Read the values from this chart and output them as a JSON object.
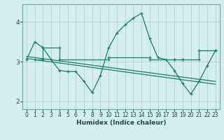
{
  "bg_color": "#d4eeed",
  "grid_color": "#b8d8d4",
  "line_color": "#1a7a6e",
  "x_label": "Humidex (Indice chaleur)",
  "xlim": [
    -0.5,
    23.5
  ],
  "ylim": [
    1.8,
    4.45
  ],
  "yticks": [
    2,
    3,
    4
  ],
  "xticks": [
    0,
    1,
    2,
    3,
    4,
    5,
    6,
    7,
    8,
    9,
    10,
    11,
    12,
    13,
    14,
    15,
    16,
    17,
    18,
    19,
    20,
    21,
    22,
    23
  ],
  "series1_x": [
    0,
    1,
    2,
    3,
    4,
    5,
    6,
    7,
    8,
    9,
    10,
    11,
    12,
    13,
    14,
    15,
    16,
    17,
    18,
    19,
    20,
    21,
    22,
    23
  ],
  "series1_y": [
    3.05,
    3.5,
    3.35,
    3.05,
    2.78,
    2.75,
    2.75,
    2.5,
    2.22,
    2.65,
    3.35,
    3.72,
    3.93,
    4.1,
    4.22,
    3.58,
    3.1,
    3.05,
    2.78,
    2.45,
    2.18,
    2.5,
    2.9,
    3.28
  ],
  "series2_x": [
    0,
    23
  ],
  "series2_y": [
    3.08,
    2.43
  ],
  "series3_x": [
    0,
    23
  ],
  "series3_y": [
    3.13,
    2.5
  ],
  "series4_x": [
    1,
    2,
    2,
    4,
    4,
    10,
    10,
    15,
    15,
    18,
    18,
    19,
    19,
    21,
    21,
    23
  ],
  "series4_y": [
    3.05,
    3.05,
    3.35,
    3.35,
    3.05,
    3.05,
    3.1,
    3.1,
    3.05,
    3.05,
    3.05,
    3.05,
    3.05,
    3.05,
    3.28,
    3.28
  ]
}
